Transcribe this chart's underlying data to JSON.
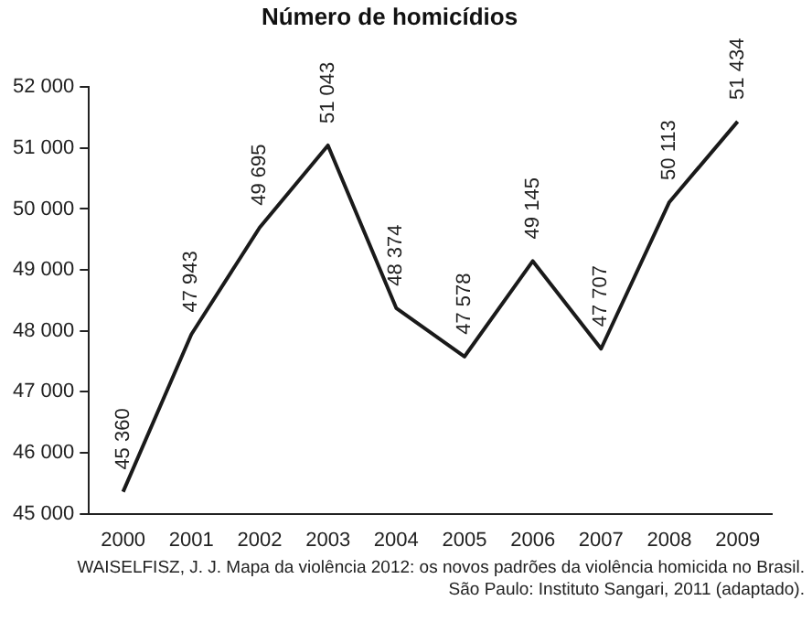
{
  "chart_data": {
    "type": "line",
    "title": "Número de homicídios",
    "categories": [
      "2000",
      "2001",
      "2002",
      "2003",
      "2004",
      "2005",
      "2006",
      "2007",
      "2008",
      "2009"
    ],
    "values": [
      45360,
      47943,
      49695,
      51043,
      48374,
      47578,
      49145,
      47707,
      50113,
      51434
    ],
    "value_labels": [
      "45 360",
      "47 943",
      "49 695",
      "51 043",
      "48 374",
      "47 578",
      "49 145",
      "47 707",
      "50 113",
      "51 434"
    ],
    "color": "#1a1a1a",
    "ylim": [
      45000,
      52000
    ],
    "yticks": [
      {
        "value": 45000,
        "label": "45 000"
      },
      {
        "value": 46000,
        "label": "46 000"
      },
      {
        "value": 47000,
        "label": "47 000"
      },
      {
        "value": 48000,
        "label": "48 000"
      },
      {
        "value": 49000,
        "label": "49 000"
      },
      {
        "value": 50000,
        "label": "50 000"
      },
      {
        "value": 51000,
        "label": "51 000"
      },
      {
        "value": 52000,
        "label": "52 000"
      }
    ],
    "grid": false,
    "legend": false,
    "marker": "none",
    "line_style": "solid",
    "annotations": [
      "WAISELFISZ, J. J. Mapa da violência 2012: os novos padrões da violência homicida no Brasil.",
      "São Paulo: Instituto Sangari, 2011 (adaptado)."
    ]
  }
}
